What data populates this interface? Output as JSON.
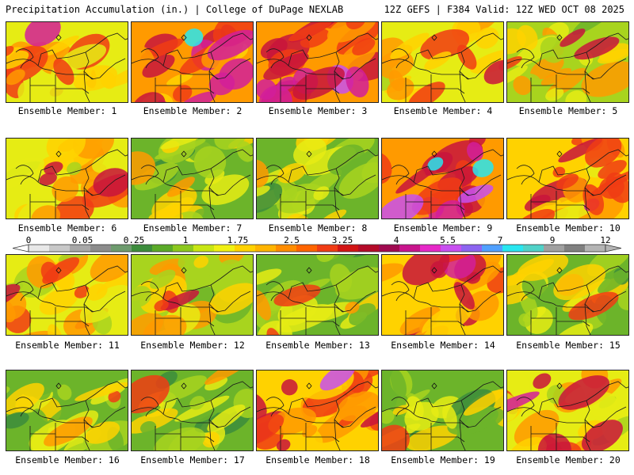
{
  "header": {
    "title": "Precipitation Accumulation (in.) | College of DuPage NEXLAB",
    "run_info": "12Z GEFS | F384 Valid: 12Z WED OCT 08 2025"
  },
  "members": [
    {
      "label": "Ensemble Member: 1",
      "level": 0.55
    },
    {
      "label": "Ensemble Member: 2",
      "level": 0.85
    },
    {
      "label": "Ensemble Member: 3",
      "level": 0.8
    },
    {
      "label": "Ensemble Member: 4",
      "level": 0.5
    },
    {
      "label": "Ensemble Member: 5",
      "level": 0.4
    },
    {
      "label": "Ensemble Member: 6",
      "level": 0.55
    },
    {
      "label": "Ensemble Member: 7",
      "level": 0.3
    },
    {
      "label": "Ensemble Member: 8",
      "level": 0.35
    },
    {
      "label": "Ensemble Member: 9",
      "level": 0.8
    },
    {
      "label": "Ensemble Member: 10",
      "level": 0.75
    },
    {
      "label": "Ensemble Member: 11",
      "level": 0.6
    },
    {
      "label": "Ensemble Member: 12",
      "level": 0.4
    },
    {
      "label": "Ensemble Member: 13",
      "level": 0.3
    },
    {
      "label": "Ensemble Member: 14",
      "level": 0.75
    },
    {
      "label": "Ensemble Member: 15",
      "level": 0.35
    },
    {
      "label": "Ensemble Member: 16",
      "level": 0.35
    },
    {
      "label": "Ensemble Member: 17",
      "level": 0.35
    },
    {
      "label": "Ensemble Member: 18",
      "level": 0.7
    },
    {
      "label": "Ensemble Member: 19",
      "level": 0.3
    },
    {
      "label": "Ensemble Member: 20",
      "level": 0.55
    }
  ],
  "colorbar": {
    "tick_labels": [
      "0",
      "0.05",
      "0.25",
      "1",
      "1.75",
      "2.5",
      "3.25",
      "4",
      "5.5",
      "7",
      "9",
      "12"
    ],
    "colors": [
      "#e8e8e8",
      "#c8c8c8",
      "#a8a8a8",
      "#8c8c8c",
      "#6e9b6e",
      "#3c8c3c",
      "#5aaa28",
      "#8cc81e",
      "#c8e614",
      "#f0f014",
      "#ffd200",
      "#ffb400",
      "#ff8c00",
      "#ff6400",
      "#f03c14",
      "#d21414",
      "#b40a28",
      "#a00a50",
      "#c8148c",
      "#e628c8",
      "#c850f0",
      "#8c64f0",
      "#50a0ff",
      "#28e6f0",
      "#50d2c8",
      "#a0a0a0",
      "#808080",
      "#b4b4b4"
    ]
  },
  "map_palette": [
    "#3c8c3c",
    "#6cb42a",
    "#a8d41e",
    "#e6ec14",
    "#ffd200",
    "#ff9a00",
    "#f03c14",
    "#c8143c",
    "#d21e9a",
    "#c850f0",
    "#28e6f0"
  ]
}
